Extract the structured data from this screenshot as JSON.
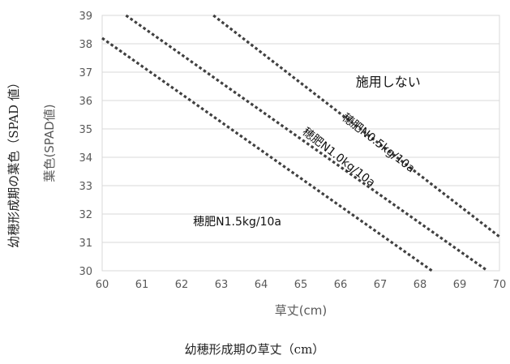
{
  "chart_data": {
    "type": "line",
    "xlabel": "草丈(cm)",
    "ylabel": "葉色(SPAD値)",
    "outer_xlabel": "幼穂形成期の草丈（cm）",
    "outer_ylabel": "幼穂形成期の葉色（SPAD 値）",
    "xlim": [
      60,
      70
    ],
    "ylim": [
      30,
      39
    ],
    "x_ticks": [
      "60",
      "61",
      "62",
      "63",
      "64",
      "65",
      "66",
      "67",
      "68",
      "69",
      "70"
    ],
    "y_ticks": [
      "30",
      "31",
      "32",
      "33",
      "34",
      "35",
      "36",
      "37",
      "38",
      "39"
    ],
    "grid": "horizontal",
    "line_style": "dotted",
    "line_color": "#404040",
    "series": [
      {
        "values": [
          [
            62.8,
            39.0
          ],
          [
            70.0,
            31.2
          ]
        ]
      },
      {
        "values": [
          [
            60.6,
            39.0
          ],
          [
            69.7,
            30.0
          ]
        ]
      },
      {
        "values": [
          [
            60.0,
            38.2
          ],
          [
            68.3,
            30.0
          ]
        ]
      }
    ],
    "annotations": [
      {
        "text": "施用しない",
        "x": 67.2,
        "y": 36.5
      },
      {
        "text": "穂肥N0.5kg/10a",
        "x": 66.9,
        "y": 34.4
      },
      {
        "text": "穂肥N1.0kg/10a",
        "x": 65.9,
        "y": 33.9
      },
      {
        "text": "穂肥N1.5kg/10a",
        "x": 63.4,
        "y": 31.6
      }
    ]
  }
}
